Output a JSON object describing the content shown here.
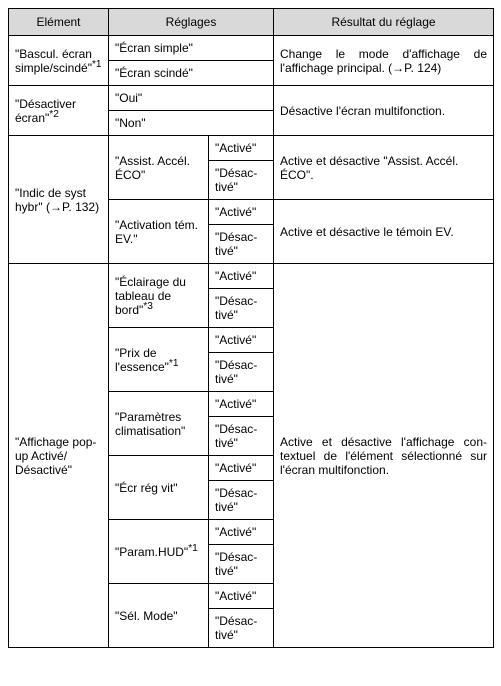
{
  "headers": {
    "element": "Elément",
    "reglages": "Réglages",
    "resultat": "Résultat du réglage"
  },
  "col_widths": {
    "element": 100,
    "reglages1": 100,
    "reglages2": 65,
    "resultat": 220
  },
  "row1": {
    "element_prefix": "\"Bascul. écran simple/scindé\"",
    "star": "*1",
    "opt1": "\"Écran simple\"",
    "opt2": "\"Écran scindé\"",
    "result_prefix": "Change le mode d'affichage de l'affichage principal. (",
    "result_arrow": "→",
    "result_suffix": "P. 124)"
  },
  "row2": {
    "element_prefix": "\"Désactiver écran\"",
    "star": "*2",
    "opt1": "\"Oui\"",
    "opt2": "\"Non\"",
    "result": "Désactive l'écran multifonction."
  },
  "row3": {
    "element_prefix": "\"Indic de syst hybr\" (",
    "element_arrow": "→",
    "element_suffix": "P. 132)",
    "sub1": "\"Assist. Accél. ÉCO\"",
    "sub2": "\"Activation tém. EV.\"",
    "active": "\"Activé\"",
    "desactive": "\"Désac-tivé\"",
    "result1": "Active et désactive \"Assist. Accél. ÉCO\".",
    "result2": "Active et désactive le témoin EV."
  },
  "row4": {
    "element": "\"Affichage pop-up Activé/ Désactivé\"",
    "sub1_prefix": "\"Éclairage du tableau de bord\"",
    "sub1_star": "*3",
    "sub2_prefix": "\"Prix de l'essence\"",
    "sub2_star": "*1",
    "sub3": "\"Paramètres climatisation\"",
    "sub4": "\"Écr rég vit\"",
    "sub5_prefix": "\"Param.HUD\"",
    "sub5_star": "*1",
    "sub6": "\"Sél. Mode\"",
    "active": "\"Activé\"",
    "desactive": "\"Désac-tivé\"",
    "result": "Active et désactive l'affichage con-textuel de l'élément sélectionné sur l'écran multifonction."
  }
}
